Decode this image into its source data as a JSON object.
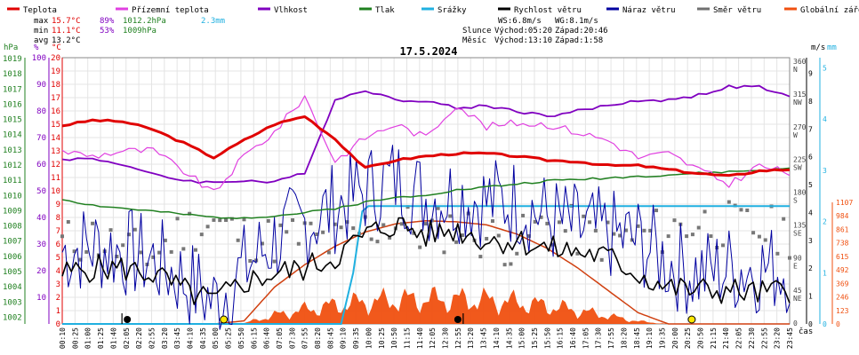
{
  "chart_data": {
    "type": "line",
    "title": "17.5.2024",
    "legend": [
      {
        "name": "Teplota",
        "color": "#e00000"
      },
      {
        "name": "Přízemní teplota",
        "color": "#e040e0"
      },
      {
        "name": "Vlhkost",
        "color": "#8000c0"
      },
      {
        "name": "Tlak",
        "color": "#208020"
      },
      {
        "name": "Srážky",
        "color": "#20b0e0"
      },
      {
        "name": "Rychlost větru",
        "color": "#000000"
      },
      {
        "name": "Náraz větru",
        "color": "#0000a0"
      },
      {
        "name": "Směr větru",
        "color": "#707070"
      },
      {
        "name": "Globální záření",
        "color": "#f05010"
      }
    ],
    "stats": {
      "max_label": "max",
      "max_temp": "15.7°C",
      "max_hum": "89%",
      "max_press": "1012.2hPa",
      "rain_total": "2.3mm",
      "min_label": "min",
      "min_temp": "11.1°C",
      "min_hum": "53%",
      "min_press": "1009hPa",
      "avg_label": "avg",
      "avg_temp": "13.2°C"
    },
    "wind_info": {
      "ws": "WS:6.8m/s",
      "wg": "WG:8.1m/s"
    },
    "astro": {
      "sun_label": "Slunce",
      "sun_rise": "Východ:05:20",
      "sun_set": "Západ:20:46",
      "moon_label": "Měsíc",
      "moon_rise": "Východ:13:10",
      "moon_set": "Západ:1:58"
    },
    "units": {
      "hpa": "hPa",
      "pct": "%",
      "degc": "°C",
      "ms": "m/s",
      "mm": "mm",
      "cas": "čas"
    },
    "axes": {
      "hpa_ticks": [
        "1019",
        "1018",
        "1017",
        "1016",
        "1015",
        "1014",
        "1013",
        "1012",
        "1011",
        "1010",
        "1009",
        "1008",
        "1007",
        "1006",
        "1005",
        "1004",
        "1003",
        "1002"
      ],
      "pct_ticks": [
        "100",
        "90",
        "80",
        "70",
        "60",
        "50",
        "40",
        "30",
        "20",
        "10"
      ],
      "temp_ticks": [
        "20",
        "19",
        "18",
        "17",
        "16",
        "15",
        "14",
        "13",
        "12",
        "11",
        "10",
        "9",
        "8",
        "7",
        "6",
        "5",
        "4",
        "3",
        "2",
        "1",
        "0"
      ],
      "dir_ticks": [
        {
          "v": 360,
          "lbl": "360",
          "card": "N"
        },
        {
          "v": 315,
          "lbl": "315",
          "card": "NW"
        },
        {
          "v": 270,
          "lbl": "270",
          "card": "W"
        },
        {
          "v": 225,
          "lbl": "225",
          "card": "SW"
        },
        {
          "v": 180,
          "lbl": "180",
          "card": "S"
        },
        {
          "v": 135,
          "lbl": "135",
          "card": "SE"
        },
        {
          "v": 90,
          "lbl": "90",
          "card": "E"
        },
        {
          "v": 45,
          "lbl": "45",
          "card": "NE"
        },
        {
          "v": 0,
          "lbl": "0",
          "card": ""
        }
      ],
      "ms_ticks": [
        "9",
        "8",
        "7",
        "6",
        "5",
        "4",
        "3",
        "2",
        "1",
        "0"
      ],
      "mm_ticks": [
        "5",
        "4",
        "3",
        "2",
        "1",
        "0"
      ],
      "rad_ticks": [
        "1107",
        "984",
        "861",
        "738",
        "615",
        "492",
        "369",
        "246",
        "123",
        "0"
      ],
      "time_ticks": [
        "00:10",
        "00:25",
        "01:00",
        "01:25",
        "01:40",
        "02:05",
        "02:20",
        "02:55",
        "03:20",
        "03:45",
        "04:10",
        "04:35",
        "05:00",
        "05:25",
        "05:50",
        "06:15",
        "06:40",
        "07:05",
        "07:30",
        "07:55",
        "08:20",
        "08:45",
        "09:10",
        "09:35",
        "10:00",
        "10:25",
        "10:50",
        "11:15",
        "11:40",
        "12:05",
        "12:30",
        "12:55",
        "13:20",
        "13:45",
        "14:10",
        "14:35",
        "15:00",
        "15:25",
        "15:50",
        "16:15",
        "16:40",
        "17:05",
        "17:30",
        "17:55",
        "18:20",
        "18:45",
        "19:10",
        "19:35",
        "20:00",
        "20:25",
        "20:50",
        "21:15",
        "21:40",
        "22:05",
        "22:30",
        "22:55",
        "23:20",
        "23:45"
      ],
      "temp_range": [
        0,
        20
      ],
      "ms_range": [
        0,
        9
      ],
      "mm_range": [
        0,
        5
      ],
      "rad_range": [
        0,
        1107
      ],
      "dir_range": [
        0,
        360
      ]
    },
    "time_hours": [
      0,
      1,
      2,
      3,
      4,
      5,
      6,
      7,
      8,
      9,
      10,
      11,
      12,
      13,
      14,
      15,
      16,
      17,
      18,
      19,
      20,
      21,
      22,
      23,
      24
    ],
    "series": [
      {
        "name": "Teplota",
        "unit": "°C",
        "values": [
          14.9,
          15.3,
          15.2,
          14.6,
          13.6,
          12.5,
          13.8,
          15.0,
          15.6,
          13.9,
          11.7,
          12.3,
          12.6,
          12.8,
          12.8,
          12.6,
          12.3,
          12.2,
          11.9,
          11.9,
          11.6,
          11.3,
          11.1,
          11.5,
          11.6
        ]
      },
      {
        "name": "Přízemní teplota",
        "unit": "°C",
        "values": [
          13.0,
          12.6,
          13.0,
          13.0,
          11.5,
          9.8,
          12.6,
          14.4,
          17.1,
          12.2,
          14.0,
          15.0,
          14.0,
          16.5,
          14.8,
          15.1,
          15.0,
          14.4,
          13.8,
          12.5,
          12.8,
          11.6,
          10.5,
          11.9,
          11.3
        ]
      },
      {
        "name": "Vlhkost",
        "unit": "%",
        "values": [
          62,
          62,
          60,
          56,
          54,
          53,
          54,
          53,
          57,
          84,
          88,
          84,
          84,
          81,
          82,
          80,
          78,
          80,
          82,
          84,
          84,
          86,
          89,
          89,
          85
        ]
      },
      {
        "name": "Tlak",
        "unit": "hPa",
        "values": [
          1010.2,
          1009.8,
          1009.6,
          1009.4,
          1009.2,
          1009.0,
          1009.0,
          1009.1,
          1009.3,
          1009.6,
          1010.0,
          1010.3,
          1010.5,
          1010.8,
          1011.0,
          1011.2,
          1011.4,
          1011.5,
          1011.6,
          1011.7,
          1011.8,
          1011.9,
          1012.0,
          1012.1,
          1012.2
        ]
      },
      {
        "name": "Srážky",
        "unit": "mm",
        "values": [
          0,
          0,
          0,
          0,
          0,
          0,
          0,
          0,
          0,
          0,
          2.3,
          2.3,
          2.3,
          2.3,
          2.3,
          2.3,
          2.3,
          2.3,
          2.3,
          2.3,
          2.3,
          2.3,
          2.3,
          2.3,
          2.3
        ]
      },
      {
        "name": "Rychlost větru",
        "unit": "m/s",
        "values": [
          1.8,
          2.0,
          2.0,
          1.8,
          1.2,
          0.8,
          1.5,
          1.8,
          2.0,
          2.4,
          3.2,
          3.6,
          3.2,
          3.4,
          3.0,
          3.0,
          2.7,
          2.6,
          2.4,
          1.8,
          1.3,
          1.2,
          1.2,
          1.1,
          1.2
        ]
      },
      {
        "name": "Náraz větru",
        "unit": "m/s",
        "values": [
          2.6,
          2.8,
          2.6,
          2.3,
          1.6,
          0.8,
          2.0,
          3.0,
          3.6,
          4.2,
          4.8,
          5.2,
          4.5,
          4.6,
          4.4,
          4.4,
          3.8,
          3.4,
          3.2,
          3.0,
          2.2,
          1.8,
          2.0,
          2.0,
          2.0
        ]
      },
      {
        "name": "Globální záření",
        "unit": "W/m²",
        "values": [
          0,
          0,
          0,
          0,
          0,
          0,
          30,
          360,
          580,
          760,
          900,
          980,
          1010,
          1000,
          970,
          880,
          740,
          550,
          330,
          110,
          0,
          0,
          0,
          0,
          0
        ]
      }
    ],
    "wind_direction_deg": [
      110,
      120,
      100,
      95,
      130,
      140,
      120,
      115,
      120,
      110,
      130,
      140,
      125,
      135,
      120,
      110,
      140,
      125,
      115,
      120,
      130,
      140,
      135,
      130,
      125
    ],
    "markers": {
      "sunrise_h": 5.33,
      "sunset_h": 20.77,
      "moonrise_h": 13.17,
      "moonset_h": 1.97
    }
  }
}
